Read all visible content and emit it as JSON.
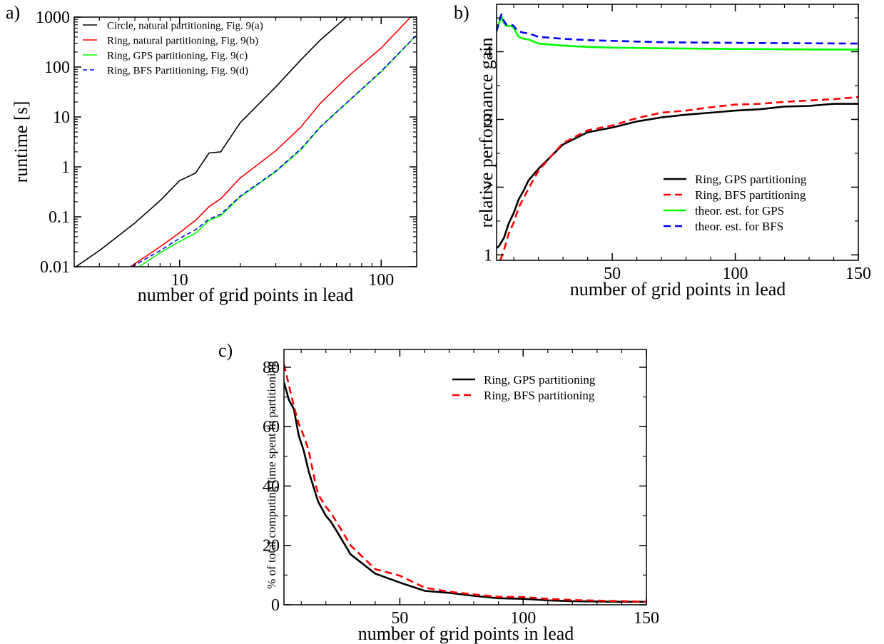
{
  "chart_data": [
    {
      "panel_label": "a)",
      "type": "line",
      "xscale": "log",
      "yscale": "log",
      "xlabel": "number of grid points in lead",
      "ylabel": "runtime [s]",
      "xlim": [
        3,
        150
      ],
      "ylim": [
        0.01,
        1000
      ],
      "xticks": [
        {
          "v": 10,
          "label": "10"
        },
        {
          "v": 100,
          "label": "100"
        }
      ],
      "yticks": [
        {
          "v": 0.01,
          "label": "0.01"
        },
        {
          "v": 0.1,
          "label": "0.1"
        },
        {
          "v": 1,
          "label": "1"
        },
        {
          "v": 10,
          "label": "10"
        },
        {
          "v": 100,
          "label": "100"
        },
        {
          "v": 1000,
          "label": "1000"
        }
      ],
      "legend_position": "top-left",
      "series": [
        {
          "name": "Circle, natural partitioning, Fig. 9(a)",
          "color": "#000000",
          "dash": "solid",
          "points": [
            [
              3,
              0.0095
            ],
            [
              4,
              0.021
            ],
            [
              6,
              0.075
            ],
            [
              8,
              0.21
            ],
            [
              10,
              0.53
            ],
            [
              12,
              0.75
            ],
            [
              14,
              1.9
            ],
            [
              16,
              2.0
            ],
            [
              20,
              7.7
            ],
            [
              30,
              40
            ],
            [
              40,
              140
            ],
            [
              50,
              350
            ],
            [
              70,
              1150
            ]
          ]
        },
        {
          "name": "Ring, natural partitioning, Fig. 9(b)",
          "color": "#ff0000",
          "dash": "solid",
          "points": [
            [
              5.7,
              0.01
            ],
            [
              8,
              0.025
            ],
            [
              10,
              0.048
            ],
            [
              12,
              0.085
            ],
            [
              14,
              0.16
            ],
            [
              16,
              0.23
            ],
            [
              20,
              0.6
            ],
            [
              30,
              2.1
            ],
            [
              40,
              6.3
            ],
            [
              50,
              19
            ],
            [
              70,
              70
            ],
            [
              100,
              240
            ],
            [
              140,
              1000
            ]
          ]
        },
        {
          "name": "Ring, GPS partitioning, Fig. 9(c)",
          "color": "#00ff00",
          "dash": "solid",
          "points": [
            [
              6.3,
              0.01
            ],
            [
              8,
              0.019
            ],
            [
              10,
              0.032
            ],
            [
              12,
              0.047
            ],
            [
              14,
              0.085
            ],
            [
              16,
              0.105
            ],
            [
              20,
              0.25
            ],
            [
              30,
              0.8
            ],
            [
              40,
              2.2
            ],
            [
              50,
              6.3
            ],
            [
              70,
              22
            ],
            [
              100,
              80
            ],
            [
              150,
              440
            ]
          ]
        },
        {
          "name": "Ring, BFS Partitioning, Fig. 9(d)",
          "color": "#0000ff",
          "dash": "dashed",
          "points": [
            [
              5.8,
              0.01
            ],
            [
              8,
              0.021
            ],
            [
              10,
              0.037
            ],
            [
              12,
              0.055
            ],
            [
              14,
              0.09
            ],
            [
              16,
              0.113
            ],
            [
              20,
              0.26
            ],
            [
              30,
              0.82
            ],
            [
              40,
              2.3
            ],
            [
              50,
              6.4
            ],
            [
              70,
              22
            ],
            [
              100,
              82
            ],
            [
              150,
              440
            ]
          ]
        }
      ]
    },
    {
      "panel_label": "b)",
      "type": "line",
      "xscale": "linear",
      "yscale": "linear",
      "xlabel": "number of grid points in lead",
      "ylabel": "relative performance gain",
      "xlim": [
        3,
        150
      ],
      "ylim": [
        0.92,
        4.7
      ],
      "xticks": [
        {
          "v": 50,
          "label": "50"
        },
        {
          "v": 100,
          "label": "100"
        },
        {
          "v": 150,
          "label": "150"
        }
      ],
      "yticks": [
        {
          "v": 1,
          "label": "1"
        },
        {
          "v": 2,
          "label": "2"
        },
        {
          "v": 3,
          "label": "3"
        },
        {
          "v": 4,
          "label": "4"
        }
      ],
      "legend_position": "bottom-right",
      "series": [
        {
          "name": "Ring, GPS partitioning",
          "color": "#000000",
          "dash": "solid",
          "points": [
            [
              3,
              1.1
            ],
            [
              4,
              1.13
            ],
            [
              6,
              1.25
            ],
            [
              8,
              1.47
            ],
            [
              10,
              1.62
            ],
            [
              12,
              1.82
            ],
            [
              14,
              1.95
            ],
            [
              16,
              2.1
            ],
            [
              20,
              2.27
            ],
            [
              25,
              2.45
            ],
            [
              30,
              2.63
            ],
            [
              40,
              2.81
            ],
            [
              50,
              2.88
            ],
            [
              60,
              2.97
            ],
            [
              70,
              3.03
            ],
            [
              80,
              3.07
            ],
            [
              90,
              3.1
            ],
            [
              100,
              3.13
            ],
            [
              110,
              3.15
            ],
            [
              120,
              3.19
            ],
            [
              130,
              3.2
            ],
            [
              140,
              3.23
            ],
            [
              150,
              3.23
            ]
          ]
        },
        {
          "name": "Ring, BFS partitioning",
          "color": "#ff0000",
          "dash": "dashed",
          "points": [
            [
              4.5,
              0.92
            ],
            [
              6,
              1.07
            ],
            [
              8,
              1.32
            ],
            [
              10,
              1.48
            ],
            [
              12,
              1.7
            ],
            [
              14,
              1.84
            ],
            [
              16,
              1.98
            ],
            [
              20,
              2.24
            ],
            [
              25,
              2.45
            ],
            [
              30,
              2.65
            ],
            [
              40,
              2.84
            ],
            [
              50,
              2.91
            ],
            [
              60,
              3.02
            ],
            [
              70,
              3.1
            ],
            [
              80,
              3.13
            ],
            [
              90,
              3.18
            ],
            [
              100,
              3.22
            ],
            [
              110,
              3.23
            ],
            [
              120,
              3.26
            ],
            [
              130,
              3.28
            ],
            [
              140,
              3.3
            ],
            [
              150,
              3.33
            ]
          ]
        },
        {
          "name": "theor. est. for GPS",
          "color": "#00ff00",
          "dash": "solid",
          "points": [
            [
              3,
              4.3
            ],
            [
              4,
              4.42
            ],
            [
              5,
              4.52
            ],
            [
              6,
              4.42
            ],
            [
              7,
              4.38
            ],
            [
              8,
              4.38
            ],
            [
              9,
              4.38
            ],
            [
              10,
              4.35
            ],
            [
              11,
              4.28
            ],
            [
              12,
              4.22
            ],
            [
              14,
              4.19
            ],
            [
              16,
              4.18
            ],
            [
              20,
              4.12
            ],
            [
              30,
              4.09
            ],
            [
              40,
              4.07
            ],
            [
              50,
              4.06
            ],
            [
              70,
              4.05
            ],
            [
              100,
              4.04
            ],
            [
              150,
              4.03
            ]
          ]
        },
        {
          "name": "theor. est. for BFS",
          "color": "#0000ff",
          "dash": "dashed",
          "points": [
            [
              3,
              4.3
            ],
            [
              4,
              4.45
            ],
            [
              5,
              4.55
            ],
            [
              6,
              4.45
            ],
            [
              7,
              4.4
            ],
            [
              8,
              4.4
            ],
            [
              9,
              4.4
            ],
            [
              10,
              4.38
            ],
            [
              11,
              4.33
            ],
            [
              12,
              4.3
            ],
            [
              14,
              4.28
            ],
            [
              16,
              4.27
            ],
            [
              20,
              4.22
            ],
            [
              30,
              4.19
            ],
            [
              40,
              4.17
            ],
            [
              50,
              4.16
            ],
            [
              70,
              4.14
            ],
            [
              100,
              4.13
            ],
            [
              150,
              4.12
            ]
          ]
        }
      ]
    },
    {
      "panel_label": "c)",
      "type": "line",
      "xscale": "linear",
      "yscale": "linear",
      "xlabel": "number of grid points in lead",
      "ylabel": "% of total computing time spent in partitioning",
      "xlim": [
        3,
        150
      ],
      "ylim": [
        0,
        86
      ],
      "xticks": [
        {
          "v": 50,
          "label": "50"
        },
        {
          "v": 100,
          "label": "100"
        },
        {
          "v": 150,
          "label": "150"
        }
      ],
      "yticks": [
        {
          "v": 0,
          "label": "0"
        },
        {
          "v": 20,
          "label": "20"
        },
        {
          "v": 40,
          "label": "40"
        },
        {
          "v": 60,
          "label": "60"
        },
        {
          "v": 80,
          "label": "80"
        }
      ],
      "legend_position": "top-right",
      "series": [
        {
          "name": "Ring, GPS partitioning",
          "color": "#000000",
          "dash": "solid",
          "points": [
            [
              3,
              75
            ],
            [
              5,
              69
            ],
            [
              7,
              66
            ],
            [
              9,
              57
            ],
            [
              11,
              52
            ],
            [
              13,
              45
            ],
            [
              16,
              37
            ],
            [
              17,
              34.5
            ],
            [
              20,
              30
            ],
            [
              22,
              28
            ],
            [
              25,
              24
            ],
            [
              30,
              17
            ],
            [
              40,
              10.5
            ],
            [
              50,
              7.5
            ],
            [
              60,
              4.7
            ],
            [
              70,
              4
            ],
            [
              80,
              3
            ],
            [
              90,
              2.2
            ],
            [
              100,
              2
            ],
            [
              110,
              1.5
            ],
            [
              120,
              1.2
            ],
            [
              130,
              1.1
            ],
            [
              140,
              1
            ],
            [
              150,
              1
            ]
          ]
        },
        {
          "name": "Ring, BFS partitioning",
          "color": "#ff0000",
          "dash": "dashed",
          "points": [
            [
              3,
              81
            ],
            [
              5,
              74
            ],
            [
              7,
              67
            ],
            [
              9,
              61
            ],
            [
              11,
              57
            ],
            [
              13,
              52
            ],
            [
              16,
              40
            ],
            [
              17,
              37
            ],
            [
              20,
              33
            ],
            [
              22,
              31
            ],
            [
              25,
              27
            ],
            [
              30,
              20
            ],
            [
              40,
              12
            ],
            [
              50,
              9.8
            ],
            [
              60,
              5.8
            ],
            [
              70,
              4.4
            ],
            [
              80,
              3.5
            ],
            [
              90,
              2.7
            ],
            [
              100,
              2.6
            ],
            [
              110,
              2
            ],
            [
              120,
              1.6
            ],
            [
              130,
              1.4
            ],
            [
              140,
              1.2
            ],
            [
              150,
              1
            ]
          ]
        }
      ]
    }
  ]
}
